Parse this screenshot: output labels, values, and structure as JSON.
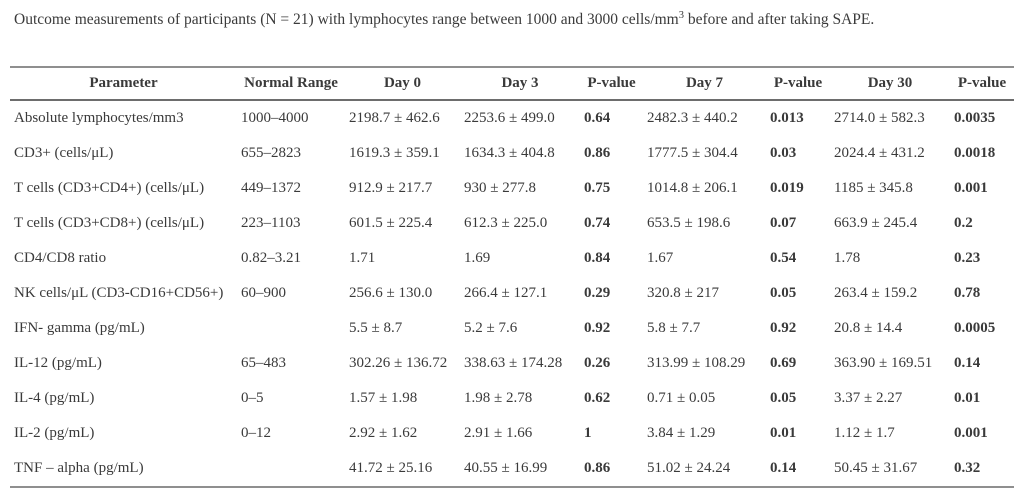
{
  "title": {
    "prefix": "Outcome measurements of participants (N = 21) with lymphocytes range between 1000 and 3000 cells/mm",
    "superscript": "3",
    "suffix": " before and after taking SAPE."
  },
  "table": {
    "columns": [
      "Parameter",
      "Normal Range",
      "Day 0",
      "Day 3",
      "P-value",
      "Day 7",
      "P-value",
      "Day 30",
      "P-value"
    ],
    "pvalue_columns": [
      4,
      6,
      8
    ],
    "rows": [
      [
        "Absolute lymphocytes/mm3",
        "1000–4000",
        "2198.7 ± 462.6",
        "2253.6 ± 499.0",
        "0.64",
        "2482.3 ± 440.2",
        "0.013",
        "2714.0 ± 582.3",
        "0.0035"
      ],
      [
        "CD3+ (cells/μL)",
        "655–2823",
        "1619.3 ± 359.1",
        "1634.3 ± 404.8",
        "0.86",
        "1777.5 ± 304.4",
        "0.03",
        "2024.4 ± 431.2",
        "0.0018"
      ],
      [
        "T cells (CD3+CD4+) (cells/μL)",
        "449–1372",
        "912.9 ± 217.7",
        "930 ± 277.8",
        "0.75",
        "1014.8 ± 206.1",
        "0.019",
        "1185 ± 345.8",
        "0.001"
      ],
      [
        "T cells (CD3+CD8+) (cells/μL)",
        "223–1103",
        "601.5 ± 225.4",
        "612.3 ± 225.0",
        "0.74",
        "653.5 ± 198.6",
        "0.07",
        "663.9 ± 245.4",
        "0.2"
      ],
      [
        "CD4/CD8 ratio",
        "0.82–3.21",
        "1.71",
        "1.69",
        "0.84",
        "1.67",
        "0.54",
        "1.78",
        "0.23"
      ],
      [
        "NK cells/μL (CD3-CD16+CD56+)",
        "60–900",
        "256.6 ± 130.0",
        "266.4 ± 127.1",
        "0.29",
        "320.8 ± 217",
        "0.05",
        "263.4 ± 159.2",
        "0.78"
      ],
      [
        "IFN- gamma (pg/mL)",
        "",
        "5.5 ± 8.7",
        "5.2 ± 7.6",
        "0.92",
        "5.8 ± 7.7",
        "0.92",
        "20.8 ± 14.4",
        "0.0005"
      ],
      [
        "IL-12 (pg/mL)",
        "65–483",
        "302.26 ± 136.72",
        "338.63 ± 174.28",
        "0.26",
        "313.99 ± 108.29",
        "0.69",
        "363.90 ± 169.51",
        "0.14"
      ],
      [
        "IL-4 (pg/mL)",
        "0–5",
        "1.57 ± 1.98",
        "1.98 ± 2.78",
        "0.62",
        "0.71 ± 0.05",
        "0.05",
        "3.37 ± 2.27",
        "0.01"
      ],
      [
        "IL-2 (pg/mL)",
        "0–12",
        "2.92 ± 1.62",
        "2.91 ± 1.66",
        "1",
        "3.84 ± 1.29",
        "0.01",
        "1.12 ± 1.7",
        "0.001"
      ],
      [
        "TNF – alpha (pg/mL)",
        "",
        "41.72 ± 25.16",
        "40.55 ± 16.99",
        "0.86",
        "51.02 ± 24.24",
        "0.14",
        "50.45 ± 31.67",
        "0.32"
      ]
    ]
  },
  "colors": {
    "text": "#3a3a3a",
    "rule_light": "#8f8f8f",
    "rule_dark": "#6d6d6d",
    "background": "#ffffff"
  }
}
